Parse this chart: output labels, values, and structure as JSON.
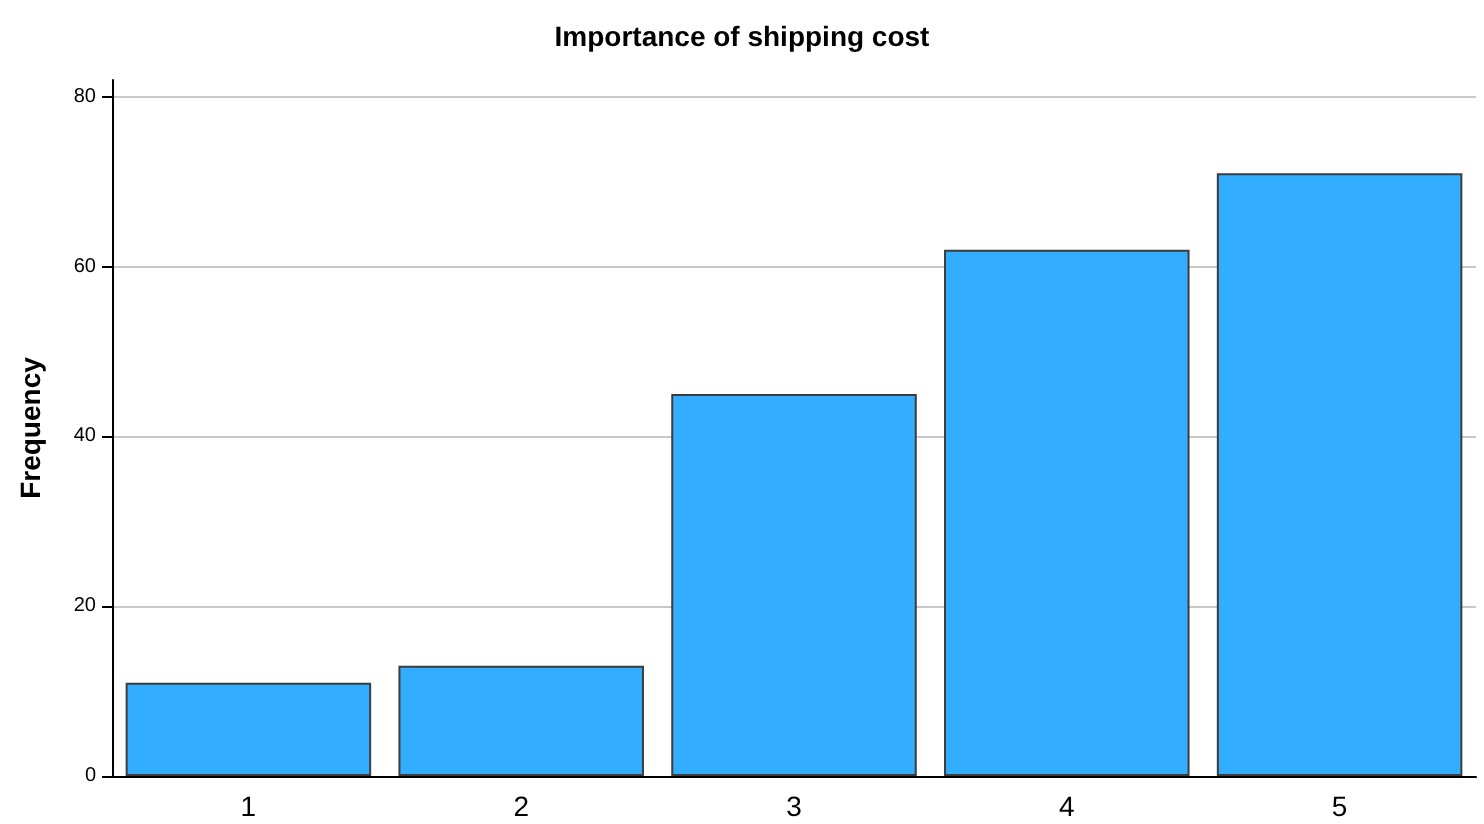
{
  "chart_data": {
    "type": "bar",
    "title": "Importance of shipping cost",
    "ylabel": "Frequency",
    "categories": [
      "1",
      "2",
      "3",
      "4",
      "5"
    ],
    "values": [
      11,
      13,
      45,
      62,
      71
    ],
    "color": "#33adff",
    "ylim": [
      0,
      82
    ],
    "yticks": [
      0,
      20,
      40,
      60,
      80
    ],
    "grid": "y"
  }
}
